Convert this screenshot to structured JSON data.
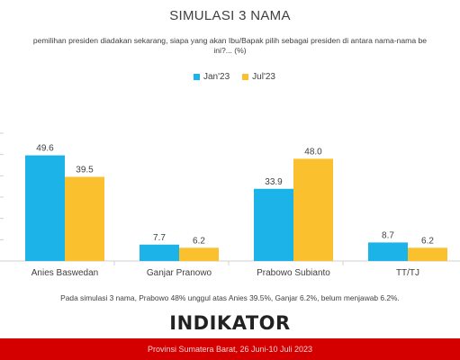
{
  "title": "SIMULASI 3 NAMA",
  "question_line1": "pemilihan presiden diadakan sekarang, siapa yang akan Ibu/Bapak pilih sebagai presiden di antara nama-nama be",
  "question_line2": "ini?... (%)",
  "note": "Pada simulasi 3 nama, Prabowo 48% unggul atas Anies 39.5%, Ganjar 6.2%, belum menjawab 6.2%.",
  "logo_text": "INDIKATOR",
  "footer_text": "Provinsi Sumatera Barat, 26 Juni-10 Juli 2023",
  "colors": {
    "jan23": "#1cb4e8",
    "jul23": "#fbc02d",
    "footer_bg": "#d40000"
  },
  "chart_data": {
    "type": "bar",
    "categories": [
      "Anies Baswedan",
      "Ganjar Pranowo",
      "Prabowo Subianto",
      "TT/TJ"
    ],
    "series": [
      {
        "name": "Jan'23",
        "values": [
          49.6,
          7.7,
          33.9,
          8.7
        ],
        "labels": [
          "49.6",
          "7.7",
          "33.9",
          "8.7"
        ]
      },
      {
        "name": "Jul'23",
        "values": [
          39.5,
          6.2,
          48.0,
          6.2
        ],
        "labels": [
          "39.5",
          "6.2",
          "48.0",
          "6.2"
        ]
      }
    ],
    "ylim": [
      0,
      60
    ],
    "grid": false,
    "legend_position": "top-center"
  }
}
